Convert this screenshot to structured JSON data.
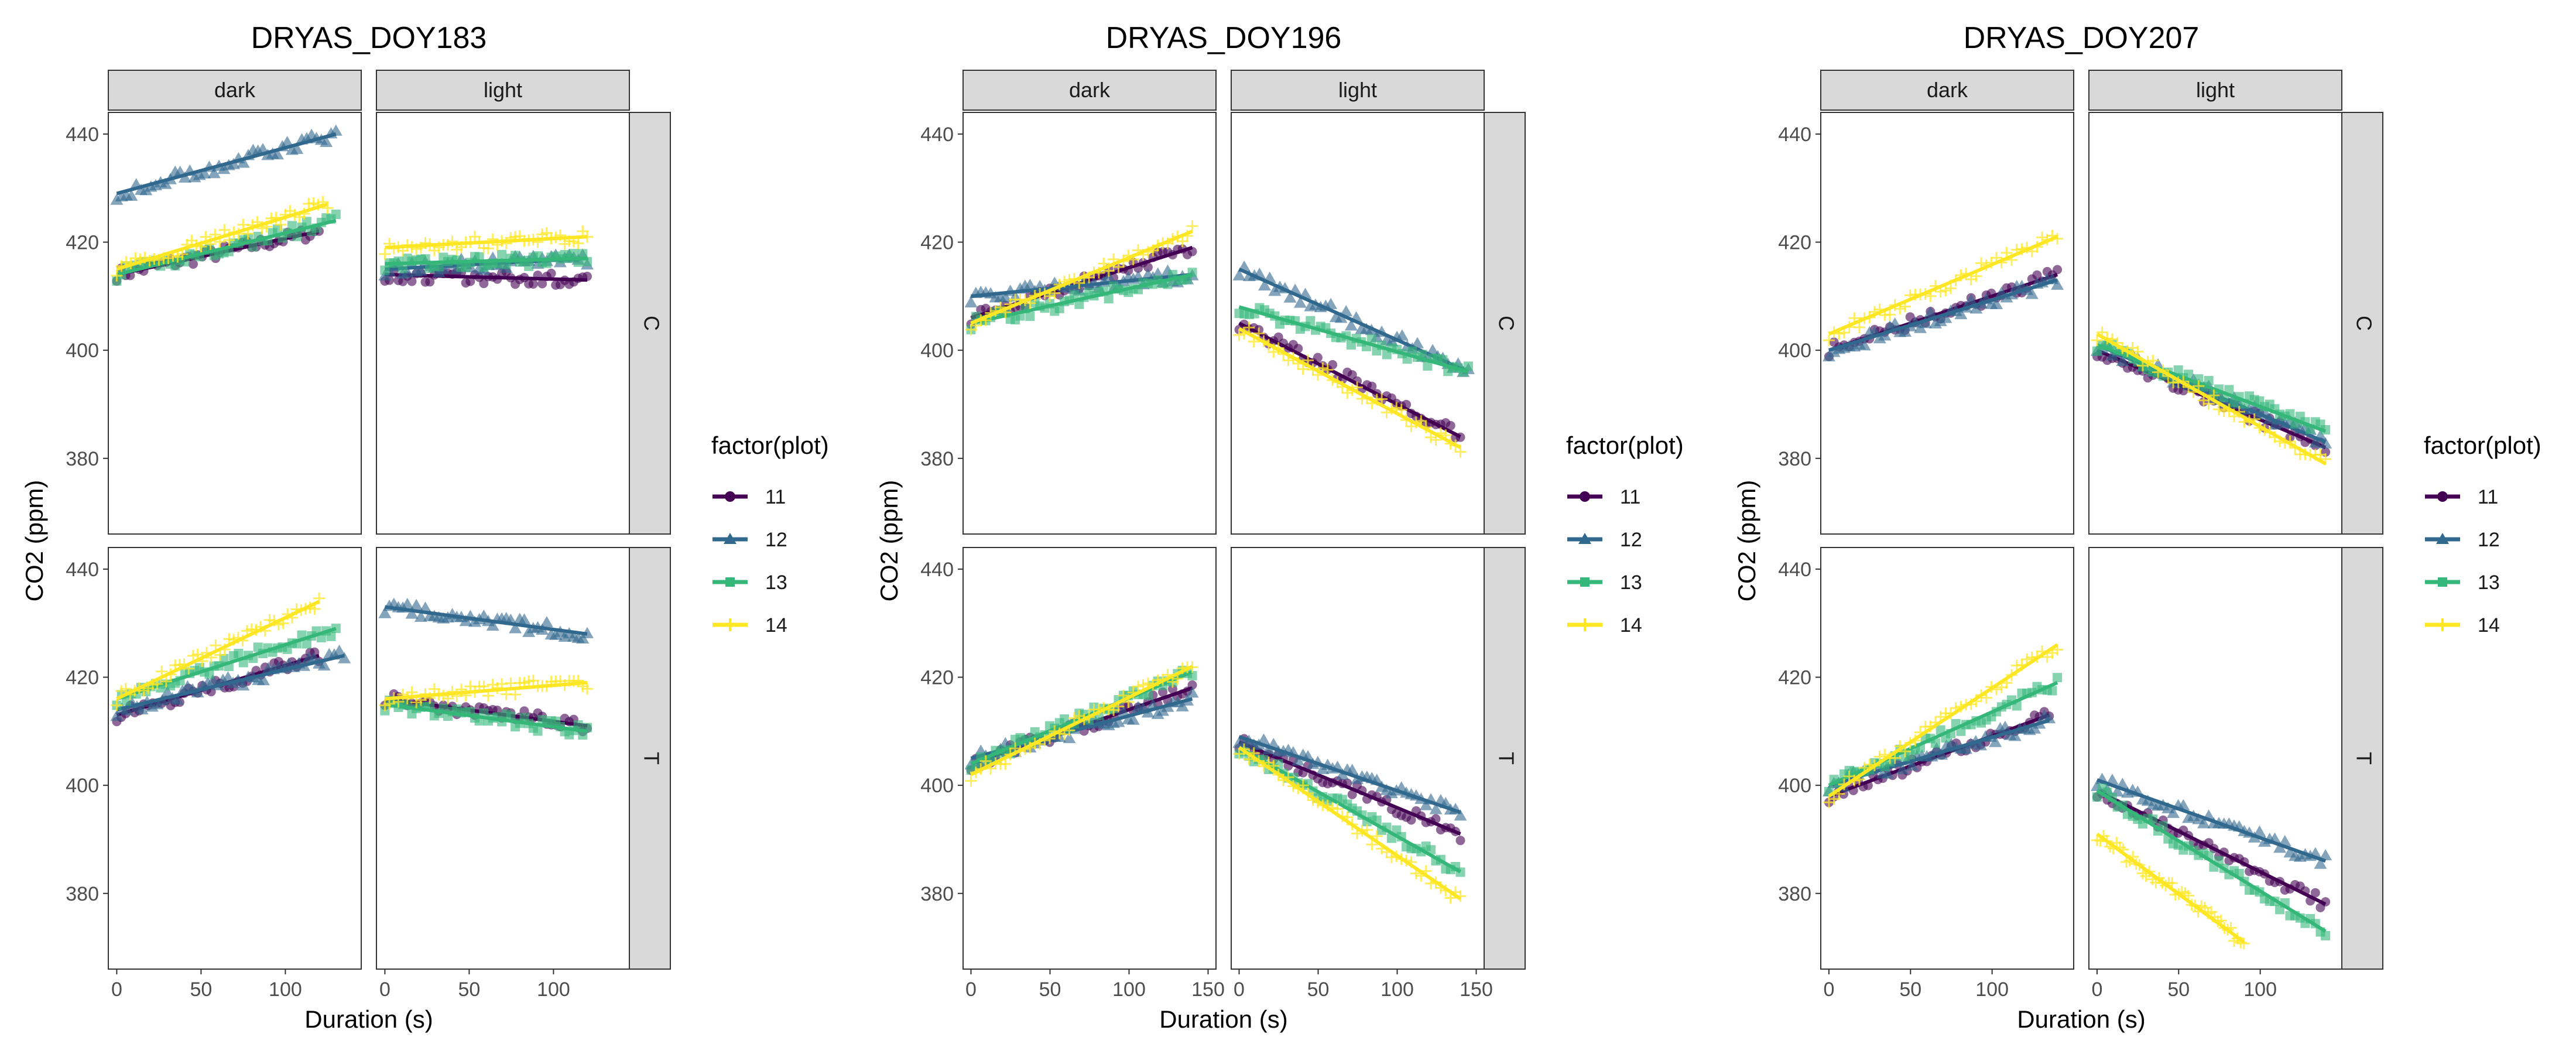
{
  "chart_data": [
    {
      "type": "scatter",
      "title": "DRYAS_DOY183",
      "xlabel": "Duration (s)",
      "ylabel": "CO2 (ppm)",
      "col_facets": [
        "dark",
        "light"
      ],
      "row_facets": [
        "C",
        "T"
      ],
      "xticks": [
        0,
        50,
        100
      ],
      "yticks": [
        380,
        400,
        420,
        440
      ],
      "xlim": [
        -5,
        145
      ],
      "ylim": [
        366,
        444
      ],
      "legend": {
        "title": "factor(plot)",
        "position": "right"
      },
      "series": [
        {
          "name": "11",
          "color": "#440154",
          "shape": "circle"
        },
        {
          "name": "12",
          "color": "#31688e",
          "shape": "triangle"
        },
        {
          "name": "13",
          "color": "#35b779",
          "shape": "square"
        },
        {
          "name": "14",
          "color": "#fde725",
          "shape": "plus"
        }
      ],
      "panels": [
        {
          "col": "dark",
          "row": "C",
          "lines": [
            {
              "series": "11",
              "x": [
                0,
                120
              ],
              "y": [
                414,
                422
              ]
            },
            {
              "series": "12",
              "x": [
                0,
                130
              ],
              "y": [
                429,
                440
              ]
            },
            {
              "series": "13",
              "x": [
                0,
                130
              ],
              "y": [
                414,
                424
              ]
            },
            {
              "series": "14",
              "x": [
                0,
                125
              ],
              "y": [
                415,
                427
              ]
            }
          ]
        },
        {
          "col": "light",
          "row": "C",
          "lines": [
            {
              "series": "11",
              "x": [
                0,
                120
              ],
              "y": [
                414,
                413
              ]
            },
            {
              "series": "12",
              "x": [
                0,
                120
              ],
              "y": [
                415,
                417
              ]
            },
            {
              "series": "13",
              "x": [
                0,
                120
              ],
              "y": [
                416,
                417
              ]
            },
            {
              "series": "14",
              "x": [
                0,
                120
              ],
              "y": [
                419,
                421
              ]
            }
          ]
        },
        {
          "col": "dark",
          "row": "T",
          "lines": [
            {
              "series": "11",
              "x": [
                0,
                120
              ],
              "y": [
                413,
                424
              ]
            },
            {
              "series": "12",
              "x": [
                0,
                135
              ],
              "y": [
                414,
                424
              ]
            },
            {
              "series": "13",
              "x": [
                0,
                130
              ],
              "y": [
                416,
                429
              ]
            },
            {
              "series": "14",
              "x": [
                0,
                120
              ],
              "y": [
                416,
                434
              ]
            }
          ]
        },
        {
          "col": "light",
          "row": "T",
          "lines": [
            {
              "series": "11",
              "x": [
                0,
                120
              ],
              "y": [
                416,
                411
              ]
            },
            {
              "series": "12",
              "x": [
                0,
                120
              ],
              "y": [
                433,
                428
              ]
            },
            {
              "series": "13",
              "x": [
                0,
                120
              ],
              "y": [
                415,
                410
              ]
            },
            {
              "series": "14",
              "x": [
                0,
                120
              ],
              "y": [
                416,
                419
              ]
            }
          ]
        }
      ]
    },
    {
      "type": "scatter",
      "title": "DRYAS_DOY196",
      "xlabel": "Duration (s)",
      "ylabel": "CO2 (ppm)",
      "col_facets": [
        "dark",
        "light"
      ],
      "row_facets": [
        "C",
        "T"
      ],
      "xticks": [
        0,
        50,
        100,
        150
      ],
      "yticks": [
        380,
        400,
        420,
        440
      ],
      "xlim": [
        -5,
        155
      ],
      "ylim": [
        366,
        444
      ],
      "legend": {
        "title": "factor(plot)",
        "position": "right"
      },
      "series": [
        {
          "name": "11",
          "color": "#440154",
          "shape": "circle"
        },
        {
          "name": "12",
          "color": "#31688e",
          "shape": "triangle"
        },
        {
          "name": "13",
          "color": "#35b779",
          "shape": "square"
        },
        {
          "name": "14",
          "color": "#fde725",
          "shape": "plus"
        }
      ],
      "panels": [
        {
          "col": "dark",
          "row": "C",
          "lines": [
            {
              "series": "11",
              "x": [
                0,
                140
              ],
              "y": [
                406,
                419
              ]
            },
            {
              "series": "12",
              "x": [
                0,
                140
              ],
              "y": [
                410,
                414
              ]
            },
            {
              "series": "13",
              "x": [
                0,
                140
              ],
              "y": [
                405,
                414
              ]
            },
            {
              "series": "14",
              "x": [
                0,
                140
              ],
              "y": [
                405,
                422
              ]
            }
          ]
        },
        {
          "col": "light",
          "row": "C",
          "lines": [
            {
              "series": "11",
              "x": [
                0,
                140
              ],
              "y": [
                405,
                384
              ]
            },
            {
              "series": "12",
              "x": [
                0,
                145
              ],
              "y": [
                415,
                396
              ]
            },
            {
              "series": "13",
              "x": [
                0,
                145
              ],
              "y": [
                408,
                396
              ]
            },
            {
              "series": "14",
              "x": [
                0,
                140
              ],
              "y": [
                404,
                382
              ]
            }
          ]
        },
        {
          "col": "dark",
          "row": "T",
          "lines": [
            {
              "series": "11",
              "x": [
                0,
                140
              ],
              "y": [
                404,
                418
              ]
            },
            {
              "series": "12",
              "x": [
                0,
                140
              ],
              "y": [
                405,
                416
              ]
            },
            {
              "series": "13",
              "x": [
                0,
                140
              ],
              "y": [
                404,
                421
              ]
            },
            {
              "series": "14",
              "x": [
                0,
                140
              ],
              "y": [
                402,
                422
              ]
            }
          ]
        },
        {
          "col": "light",
          "row": "T",
          "lines": [
            {
              "series": "11",
              "x": [
                0,
                140
              ],
              "y": [
                408,
                391
              ]
            },
            {
              "series": "12",
              "x": [
                0,
                140
              ],
              "y": [
                409,
                395
              ]
            },
            {
              "series": "13",
              "x": [
                0,
                140
              ],
              "y": [
                407,
                384
              ]
            },
            {
              "series": "14",
              "x": [
                0,
                140
              ],
              "y": [
                407,
                379
              ]
            }
          ]
        }
      ]
    },
    {
      "type": "scatter",
      "title": "DRYAS_DOY207",
      "xlabel": "Duration (s)",
      "ylabel": "CO2 (ppm)",
      "col_facets": [
        "dark",
        "light"
      ],
      "row_facets": [
        "C",
        "T"
      ],
      "xticks": [
        0,
        50,
        100
      ],
      "yticks": [
        380,
        400,
        420,
        440
      ],
      "xlim": [
        -5,
        150
      ],
      "ylim": [
        366,
        444
      ],
      "legend": {
        "title": "factor(plot)",
        "position": "right"
      },
      "series": [
        {
          "name": "11",
          "color": "#440154",
          "shape": "circle"
        },
        {
          "name": "12",
          "color": "#31688e",
          "shape": "triangle"
        },
        {
          "name": "13",
          "color": "#35b779",
          "shape": "square"
        },
        {
          "name": "14",
          "color": "#fde725",
          "shape": "plus"
        }
      ],
      "panels": [
        {
          "col": "dark",
          "row": "C",
          "lines": [
            {
              "series": "11",
              "x": [
                0,
                140
              ],
              "y": [
                400,
                414
              ]
            },
            {
              "series": "12",
              "x": [
                0,
                140
              ],
              "y": [
                400,
                413
              ]
            },
            {
              "series": "14",
              "x": [
                0,
                140
              ],
              "y": [
                403,
                421
              ]
            }
          ]
        },
        {
          "col": "light",
          "row": "C",
          "lines": [
            {
              "series": "11",
              "x": [
                0,
                140
              ],
              "y": [
                400,
                382
              ]
            },
            {
              "series": "12",
              "x": [
                0,
                140
              ],
              "y": [
                401,
                383
              ]
            },
            {
              "series": "13",
              "x": [
                0,
                140
              ],
              "y": [
                401,
                385
              ]
            },
            {
              "series": "14",
              "x": [
                0,
                140
              ],
              "y": [
                403,
                379
              ]
            }
          ]
        },
        {
          "col": "dark",
          "row": "T",
          "lines": [
            {
              "series": "11",
              "x": [
                0,
                135
              ],
              "y": [
                398,
                413
              ]
            },
            {
              "series": "12",
              "x": [
                0,
                135
              ],
              "y": [
                400,
                412
              ]
            },
            {
              "series": "13",
              "x": [
                0,
                140
              ],
              "y": [
                400,
                419
              ]
            },
            {
              "series": "14",
              "x": [
                0,
                140
              ],
              "y": [
                398,
                426
              ]
            }
          ]
        },
        {
          "col": "light",
          "row": "T",
          "lines": [
            {
              "series": "11",
              "x": [
                0,
                140
              ],
              "y": [
                399,
                378
              ]
            },
            {
              "series": "12",
              "x": [
                0,
                140
              ],
              "y": [
                401,
                386
              ]
            },
            {
              "series": "13",
              "x": [
                0,
                140
              ],
              "y": [
                399,
                373
              ]
            },
            {
              "series": "14",
              "x": [
                0,
                90
              ],
              "y": [
                391,
                371
              ]
            }
          ]
        }
      ]
    }
  ]
}
